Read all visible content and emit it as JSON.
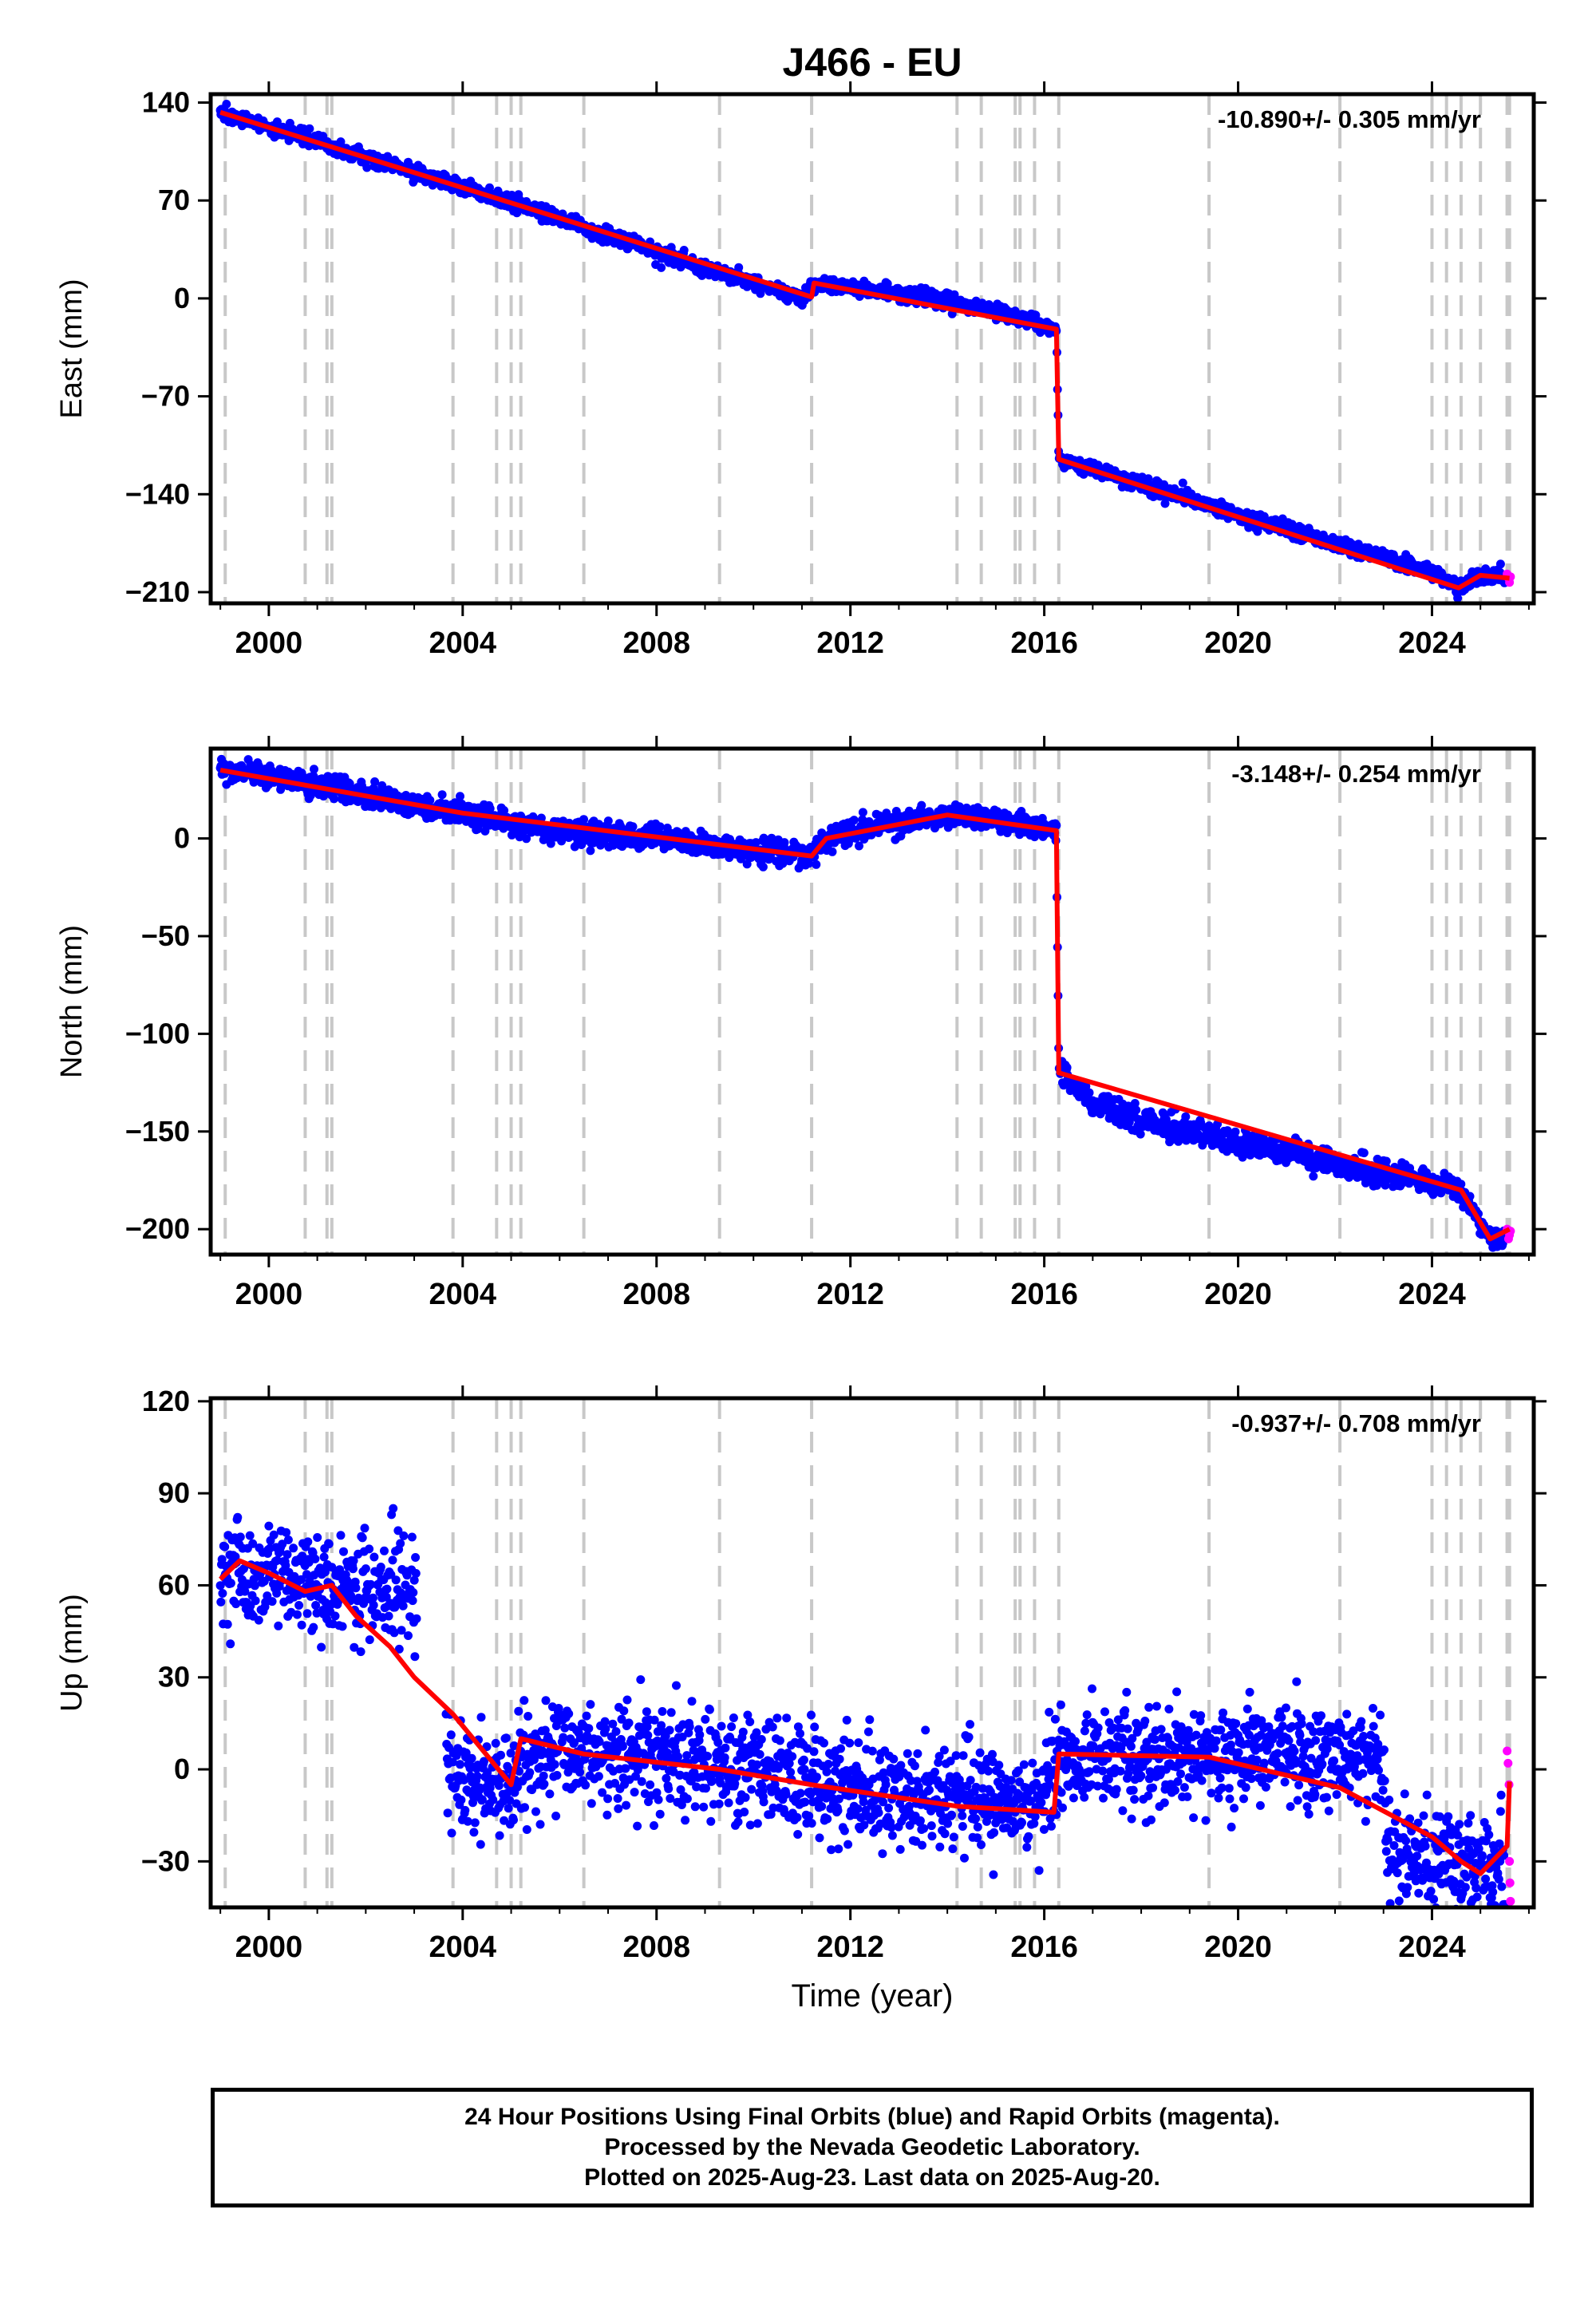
{
  "title": "J466 - EU",
  "colors": {
    "final_orbits": "#0000ff",
    "rapid_orbits": "#ff00ff",
    "model": "#ff0000",
    "event_lines": "#c8c8c8",
    "frame": "#000000"
  },
  "x_axis": {
    "label": "Time (year)",
    "range": [
      1998.8,
      2026.1
    ],
    "ticks": [
      2000,
      2004,
      2008,
      2012,
      2016,
      2020,
      2024
    ],
    "tick_labels": [
      "2000",
      "2004",
      "2008",
      "2012",
      "2016",
      "2020",
      "2024"
    ]
  },
  "event_lines": [
    1999.1,
    2000.75,
    2001.2,
    2001.3,
    2003.8,
    2004.7,
    2005.0,
    2005.2,
    2006.5,
    2009.3,
    2011.2,
    2014.2,
    2014.7,
    2015.4,
    2015.5,
    2015.8,
    2016.3,
    2019.4,
    2022.1,
    2024.0,
    2024.3,
    2024.6,
    2025.0,
    2025.55,
    2025.6
  ],
  "chart_data": [
    {
      "type": "scatter",
      "component": "east",
      "ylabel": "East (mm)",
      "ylim": [
        -218,
        146
      ],
      "yticks": [
        140,
        70,
        0,
        -70,
        -140,
        -210
      ],
      "ytick_labels": [
        "140",
        "70",
        "0",
        "−70",
        "−140",
        "−210"
      ],
      "rate_label": "-10.890+/- 0.305 mm/yr",
      "noise_mm": 2.6,
      "series": [
        {
          "name": "Final Orbits",
          "x": [
            1999.0,
            2000.0,
            2001.0,
            2002.0,
            2003.0,
            2004.0,
            2005.0,
            2006.0,
            2007.0,
            2008.0,
            2009.0,
            2010.0,
            2011.0,
            2011.25,
            2012.0,
            2013.0,
            2014.0,
            2015.0,
            2016.25,
            2016.3,
            2017.0,
            2018.0,
            2019.0,
            2020.0,
            2021.0,
            2022.0,
            2023.0,
            2024.0,
            2024.55,
            2025.0,
            2025.5
          ],
          "y": [
            133,
            122,
            112,
            101,
            90,
            80,
            68,
            57,
            45,
            33,
            22,
            11,
            0,
            10,
            8,
            4,
            -1,
            -10,
            -22,
            -115,
            -122,
            -133,
            -143,
            -155,
            -165,
            -175,
            -185,
            -195,
            -207,
            -198,
            -200
          ]
        },
        {
          "name": "Rapid Orbits",
          "x": [
            2025.55,
            2025.58,
            2025.6,
            2025.62
          ],
          "y": [
            -197,
            -200,
            -203,
            -199
          ]
        }
      ],
      "model": {
        "x": [
          1999.0,
          2003.0,
          2011.2,
          2011.25,
          2016.25,
          2016.3,
          2024.55,
          2025.0,
          2025.6
        ],
        "y": [
          133,
          90,
          1,
          11,
          -22,
          -115,
          -207,
          -198,
          -200
        ]
      }
    },
    {
      "type": "scatter",
      "component": "north",
      "ylabel": "North (mm)",
      "ylim": [
        -213,
        46
      ],
      "yticks": [
        0,
        -50,
        -100,
        -150,
        -200
      ],
      "ytick_labels": [
        "0",
        "−50",
        "−100",
        "−150",
        "−200"
      ],
      "rate_label": "-3.148+/- 0.254 mm/yr",
      "noise_mm": 3.0,
      "series": [
        {
          "name": "Final Orbits",
          "x": [
            1999.0,
            2000.0,
            2001.0,
            2002.0,
            2003.0,
            2004.0,
            2005.0,
            2006.0,
            2007.0,
            2008.0,
            2009.0,
            2010.0,
            2011.2,
            2011.5,
            2012.0,
            2013.0,
            2014.0,
            2015.0,
            2016.25,
            2016.3,
            2017.0,
            2018.0,
            2019.0,
            2020.0,
            2021.0,
            2022.0,
            2023.0,
            2024.0,
            2024.6,
            2025.2,
            2025.5
          ],
          "y": [
            35,
            32,
            28,
            22,
            18,
            13,
            8,
            4,
            2,
            0,
            -3,
            -6,
            -9,
            0,
            3,
            8,
            12,
            10,
            4,
            -120,
            -135,
            -145,
            -150,
            -155,
            -160,
            -167,
            -172,
            -176,
            -180,
            -205,
            -205
          ]
        },
        {
          "name": "Rapid Orbits",
          "x": [
            2025.55,
            2025.58,
            2025.6,
            2025.62
          ],
          "y": [
            -200,
            -205,
            -203,
            -201
          ]
        }
      ],
      "model": {
        "x": [
          1999.0,
          2004.0,
          2011.2,
          2011.5,
          2014.0,
          2016.25,
          2016.3,
          2024.6,
          2025.2,
          2025.6
        ],
        "y": [
          35,
          13,
          -9,
          0,
          12,
          4,
          -120,
          -180,
          -205,
          -200
        ]
      }
    },
    {
      "type": "scatter",
      "component": "up",
      "ylabel": "Up (mm)",
      "ylim": [
        -45,
        121
      ],
      "yticks": [
        120,
        90,
        60,
        30,
        0,
        -30
      ],
      "ytick_labels": [
        "120",
        "90",
        "60",
        "30",
        "0",
        "−30"
      ],
      "rate_label": "-0.937+/- 0.708 mm/yr",
      "noise_mm": 8.5,
      "gap": [
        2003.05,
        2003.65
      ],
      "series": [
        {
          "name": "Final Orbits",
          "x": [
            1999.0,
            2000.0,
            2001.0,
            2002.0,
            2003.0,
            2003.7,
            2005.0,
            2005.2,
            2006.5,
            2008.0,
            2010.0,
            2012.0,
            2014.0,
            2016.0,
            2016.3,
            2018.0,
            2020.0,
            2022.0,
            2023.0,
            2023.05,
            2024.0,
            2024.8,
            2025.5
          ],
          "y": [
            63,
            65,
            60,
            58,
            60,
            -3,
            -6,
            4,
            6,
            4,
            0,
            -6,
            -9,
            -9,
            4,
            4,
            5,
            4,
            3,
            -26,
            -28,
            -30,
            -30
          ]
        },
        {
          "name": "Rapid Orbits",
          "x": [
            2025.55,
            2025.57,
            2025.59,
            2025.6,
            2025.61,
            2025.62
          ],
          "y": [
            6,
            2,
            -5,
            -30,
            -37,
            -43
          ]
        }
      ],
      "model": {
        "x": [
          1999.0,
          1999.4,
          2000.0,
          2000.75,
          2001.3,
          2001.8,
          2002.5,
          2003.0,
          2003.8,
          2005.0,
          2005.2,
          2006.5,
          2009.3,
          2011.2,
          2014.2,
          2016.2,
          2016.3,
          2019.4,
          2022.1,
          2024.0,
          2024.6,
          2025.0,
          2025.55,
          2025.6
        ],
        "y": [
          62,
          68,
          64,
          58,
          60,
          50,
          40,
          30,
          18,
          -5,
          10,
          5,
          0,
          -5,
          -12,
          -14,
          5,
          4,
          -6,
          -22,
          -30,
          -34,
          -25,
          -4
        ]
      }
    }
  ],
  "footer": {
    "line1": "24 Hour Positions Using Final Orbits (blue) and Rapid Orbits (magenta).",
    "line2": "Processed by the Nevada Geodetic Laboratory.",
    "line3": "Plotted on 2025-Aug-23. Last data on 2025-Aug-20."
  }
}
